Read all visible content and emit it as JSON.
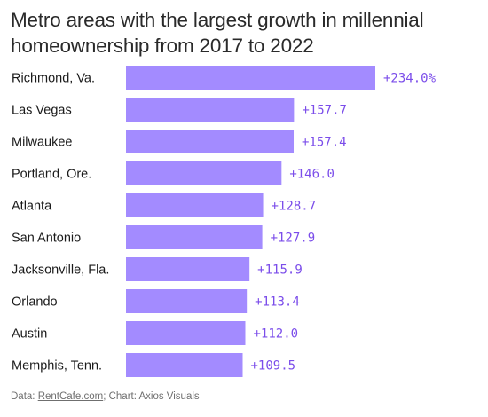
{
  "title": "Metro areas with the largest growth in millennial homeownership from 2017 to 2022",
  "footer": {
    "prefix": "Data: ",
    "source_link": "RentCafe.com",
    "suffix": "; Chart: Axios Visuals"
  },
  "colors": {
    "bar": "#a38bff",
    "value_label": "#7b4dea"
  },
  "chart_data": {
    "type": "bar",
    "orientation": "horizontal",
    "title": "Metro areas with the largest growth in millennial homeownership from 2017 to 2022",
    "xlabel": "",
    "ylabel": "",
    "grid": false,
    "xlim": [
      0,
      234.0
    ],
    "categories": [
      "Richmond, Va.",
      "Las Vegas",
      "Milwaukee",
      "Portland, Ore.",
      "Atlanta",
      "San Antonio",
      "Jacksonville, Fla.",
      "Orlando",
      "Austin",
      "Memphis, Tenn."
    ],
    "values": [
      234.0,
      157.7,
      157.4,
      146.0,
      128.7,
      127.9,
      115.9,
      113.4,
      112.0,
      109.5
    ],
    "value_labels": [
      "+234.0%",
      "+157.7",
      "+157.4",
      "+146.0",
      "+128.7",
      "+127.9",
      "+115.9",
      "+113.4",
      "+112.0",
      "+109.5"
    ]
  }
}
